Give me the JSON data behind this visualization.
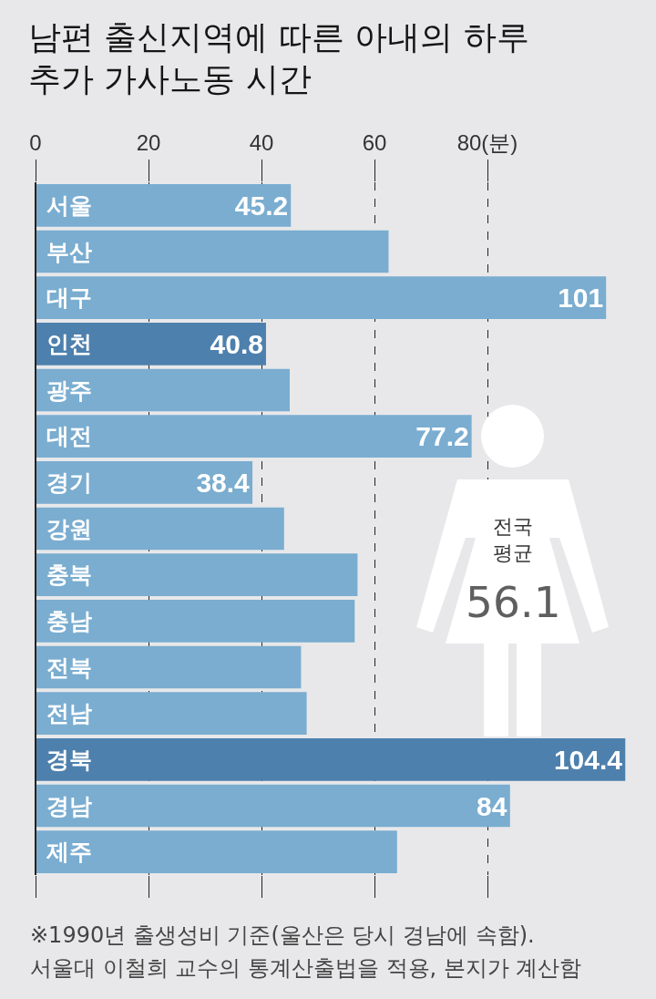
{
  "chart_data": {
    "type": "bar",
    "orientation": "horizontal",
    "title": "남편 출신지역에 따른 아내의 하루 추가 가사노동 시간",
    "categories": [
      "서울",
      "부산",
      "대구",
      "인천",
      "광주",
      "대전",
      "경기",
      "강원",
      "충북",
      "충남",
      "전북",
      "전남",
      "경북",
      "경남",
      "제주"
    ],
    "values": [
      45.2,
      62.5,
      101,
      40.8,
      45,
      77.2,
      38.4,
      44,
      57,
      56.5,
      47,
      48,
      104.4,
      84,
      64
    ],
    "value_labels": [
      "45.2",
      null,
      "101",
      "40.8",
      null,
      "77.2",
      "38.4",
      null,
      null,
      null,
      null,
      null,
      "104.4",
      "84",
      null
    ],
    "colors": [
      "#7aadd0",
      "#7aadd0",
      "#7aadd0",
      "#4e80ad",
      "#7aadd0",
      "#7aadd0",
      "#7aadd0",
      "#7aadd0",
      "#7aadd0",
      "#7aadd0",
      "#7aadd0",
      "#7aadd0",
      "#4e80ad",
      "#7aadd0",
      "#7aadd0"
    ],
    "xlim": [
      0,
      105
    ],
    "xticks": [
      0,
      20,
      40,
      60,
      {
        "value": 80,
        "label": "80(분)"
      }
    ],
    "grid": "x",
    "annotations": [
      "전국 평균",
      "56.1",
      "※1990년 출생성비 기준(울산은 당시 경남에 속함).",
      "서울대 이철희 교수의 통계산출법을 적용, 본지가 계산함"
    ]
  }
}
